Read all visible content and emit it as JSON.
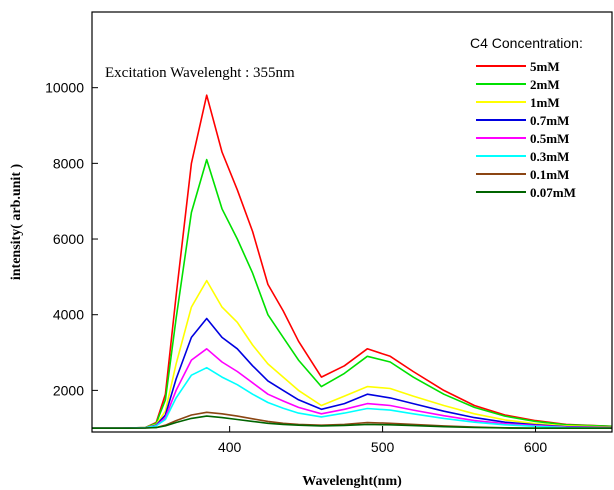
{
  "chart_data": {
    "type": "line",
    "xlabel": "Wavelenght(nm)",
    "ylabel": "intensity( arb.unit )",
    "annotation": "Excitation Wavelenght : 355nm",
    "legend_title": "C4 Concentration:",
    "legend_position": "top-right",
    "grid": false,
    "xlim": [
      310,
      650
    ],
    "ylim": [
      900,
      12000
    ],
    "x_ticks": [
      400,
      500,
      600
    ],
    "y_ticks": [
      2000,
      4000,
      6000,
      8000,
      10000
    ],
    "x": [
      310,
      330,
      345,
      352,
      358,
      365,
      375,
      385,
      395,
      405,
      415,
      425,
      435,
      445,
      460,
      475,
      490,
      505,
      520,
      540,
      560,
      580,
      600,
      620,
      650
    ],
    "series": [
      {
        "name": "5mM",
        "color": "#ff0000",
        "values": [
          1000,
          1000,
          1020,
          1150,
          1900,
          4500,
          8000,
          9800,
          8300,
          7300,
          6200,
          4800,
          4100,
          3300,
          2350,
          2650,
          3100,
          2900,
          2500,
          2000,
          1600,
          1350,
          1200,
          1100,
          1050
        ]
      },
      {
        "name": "2mM",
        "color": "#00e000",
        "values": [
          1000,
          1000,
          1020,
          1130,
          1750,
          3900,
          6700,
          8100,
          6800,
          6000,
          5100,
          4000,
          3400,
          2800,
          2100,
          2450,
          2900,
          2750,
          2350,
          1900,
          1550,
          1320,
          1180,
          1090,
          1050
        ]
      },
      {
        "name": "1mM",
        "color": "#ffff00",
        "values": [
          1000,
          1000,
          1010,
          1100,
          1450,
          2700,
          4200,
          4900,
          4200,
          3800,
          3200,
          2700,
          2350,
          2000,
          1600,
          1850,
          2100,
          2050,
          1850,
          1600,
          1380,
          1220,
          1120,
          1060,
          1030
        ]
      },
      {
        "name": "0.7mM",
        "color": "#0000e0",
        "values": [
          1000,
          1000,
          1010,
          1080,
          1350,
          2300,
          3400,
          3900,
          3400,
          3100,
          2650,
          2250,
          2000,
          1750,
          1500,
          1650,
          1900,
          1800,
          1650,
          1450,
          1280,
          1160,
          1090,
          1040,
          1020
        ]
      },
      {
        "name": "0.5mM",
        "color": "#ff00ff",
        "values": [
          1000,
          1000,
          1010,
          1070,
          1280,
          2000,
          2800,
          3100,
          2750,
          2500,
          2200,
          1900,
          1720,
          1550,
          1380,
          1500,
          1650,
          1600,
          1480,
          1330,
          1200,
          1120,
          1070,
          1030,
          1010
        ]
      },
      {
        "name": "0.3mM",
        "color": "#00ffff",
        "values": [
          1000,
          1000,
          1010,
          1060,
          1230,
          1800,
          2400,
          2600,
          2350,
          2150,
          1900,
          1680,
          1530,
          1400,
          1300,
          1400,
          1520,
          1480,
          1380,
          1260,
          1160,
          1090,
          1050,
          1020,
          1000
        ]
      },
      {
        "name": "0.1mM",
        "color": "#8b4513",
        "values": [
          1000,
          1000,
          1005,
          1020,
          1080,
          1200,
          1350,
          1420,
          1380,
          1320,
          1250,
          1180,
          1130,
          1100,
          1080,
          1100,
          1150,
          1130,
          1100,
          1060,
          1030,
          1010,
          1000,
          1000,
          1000
        ]
      },
      {
        "name": "0.07mM",
        "color": "#006400",
        "values": [
          1000,
          1000,
          1005,
          1015,
          1060,
          1150,
          1260,
          1320,
          1280,
          1230,
          1180,
          1130,
          1100,
          1080,
          1060,
          1075,
          1100,
          1090,
          1070,
          1040,
          1020,
          1005,
          1000,
          1000,
          1000
        ]
      }
    ]
  }
}
